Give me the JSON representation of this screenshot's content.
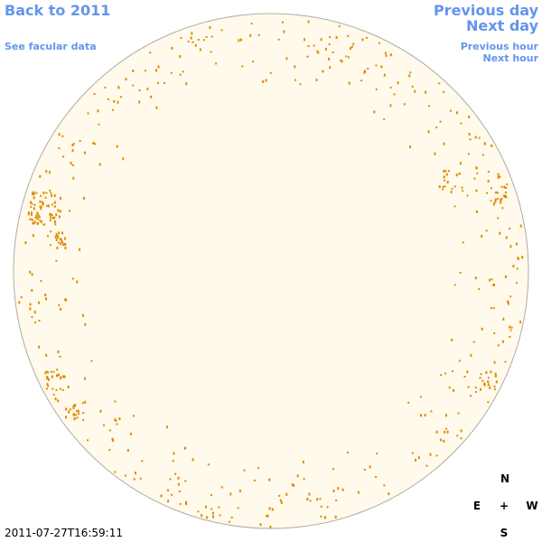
{
  "nav": {
    "back": "Back to 2011",
    "facular": "See facular data",
    "previous_day": "Previous day",
    "next_day": "Next day",
    "previous_hour": "Previous hour",
    "next_hour": "Next hour"
  },
  "timestamp": "2011-07-27T16:59:11",
  "compass": {
    "north": "N",
    "east": "E",
    "center": "+",
    "west": "W",
    "south": "S"
  }
}
